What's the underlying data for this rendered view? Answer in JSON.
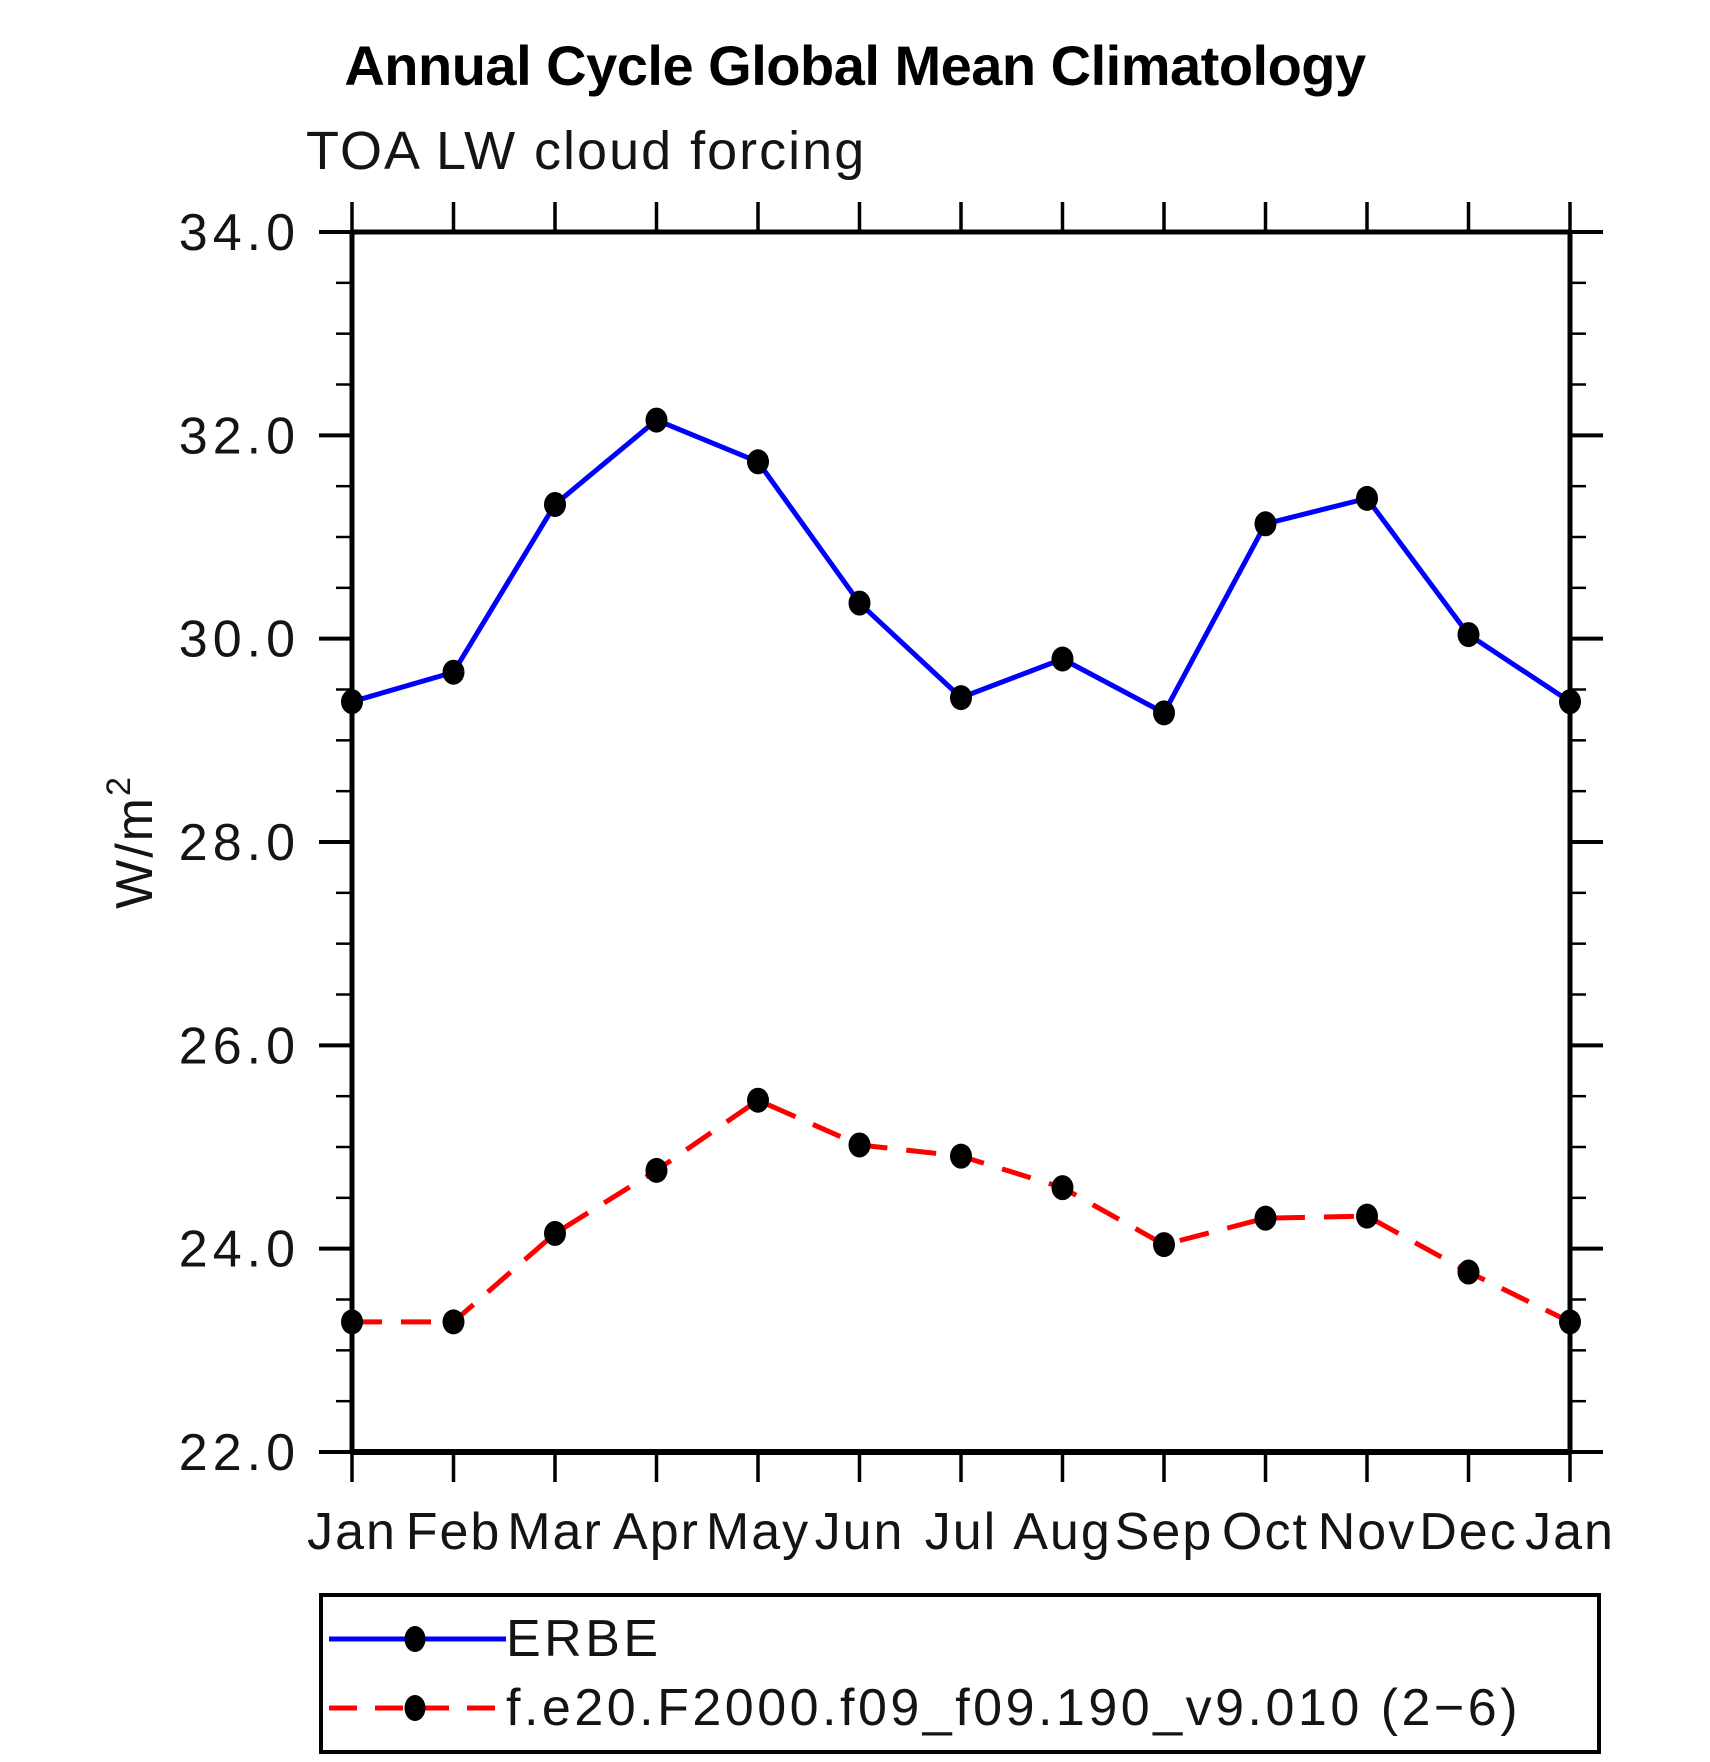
{
  "chart_data": {
    "type": "line",
    "title": "Annual Cycle Global Mean Climatology",
    "subtitle": "TOA LW cloud forcing",
    "ylabel": "W/m",
    "ylabel_exponent": "2",
    "ylim": [
      22.0,
      34.0
    ],
    "ytick_interval_major": 2.0,
    "ytick_interval_minor": 0.5,
    "ytick_labels": [
      "22.0",
      "24.0",
      "26.0",
      "28.0",
      "30.0",
      "32.0",
      "34.0"
    ],
    "categories": [
      "Jan",
      "Feb",
      "Mar",
      "Apr",
      "May",
      "Jun",
      "Jul",
      "Aug",
      "Sep",
      "Oct",
      "Nov",
      "Dec",
      "Jan"
    ],
    "grid": false,
    "legend_position": "bottom-left-box",
    "axis_color": "#000000",
    "marker_color": "#000000",
    "series": [
      {
        "name": "ERBE",
        "line_color": "#0000ff",
        "line_style": "solid",
        "marker": "filled-circle",
        "values": [
          29.38,
          29.67,
          31.32,
          32.15,
          31.74,
          30.35,
          29.42,
          29.8,
          29.27,
          31.13,
          31.38,
          30.04,
          29.38
        ]
      },
      {
        "name": "f.e20.F2000.f09_f09.190_v9.010 (2−6)",
        "line_color": "#ff0000",
        "line_style": "dashed",
        "marker": "filled-circle",
        "values": [
          23.28,
          23.28,
          24.15,
          24.77,
          25.46,
          25.02,
          24.91,
          24.6,
          24.04,
          24.3,
          24.32,
          23.77,
          23.28
        ]
      }
    ]
  }
}
